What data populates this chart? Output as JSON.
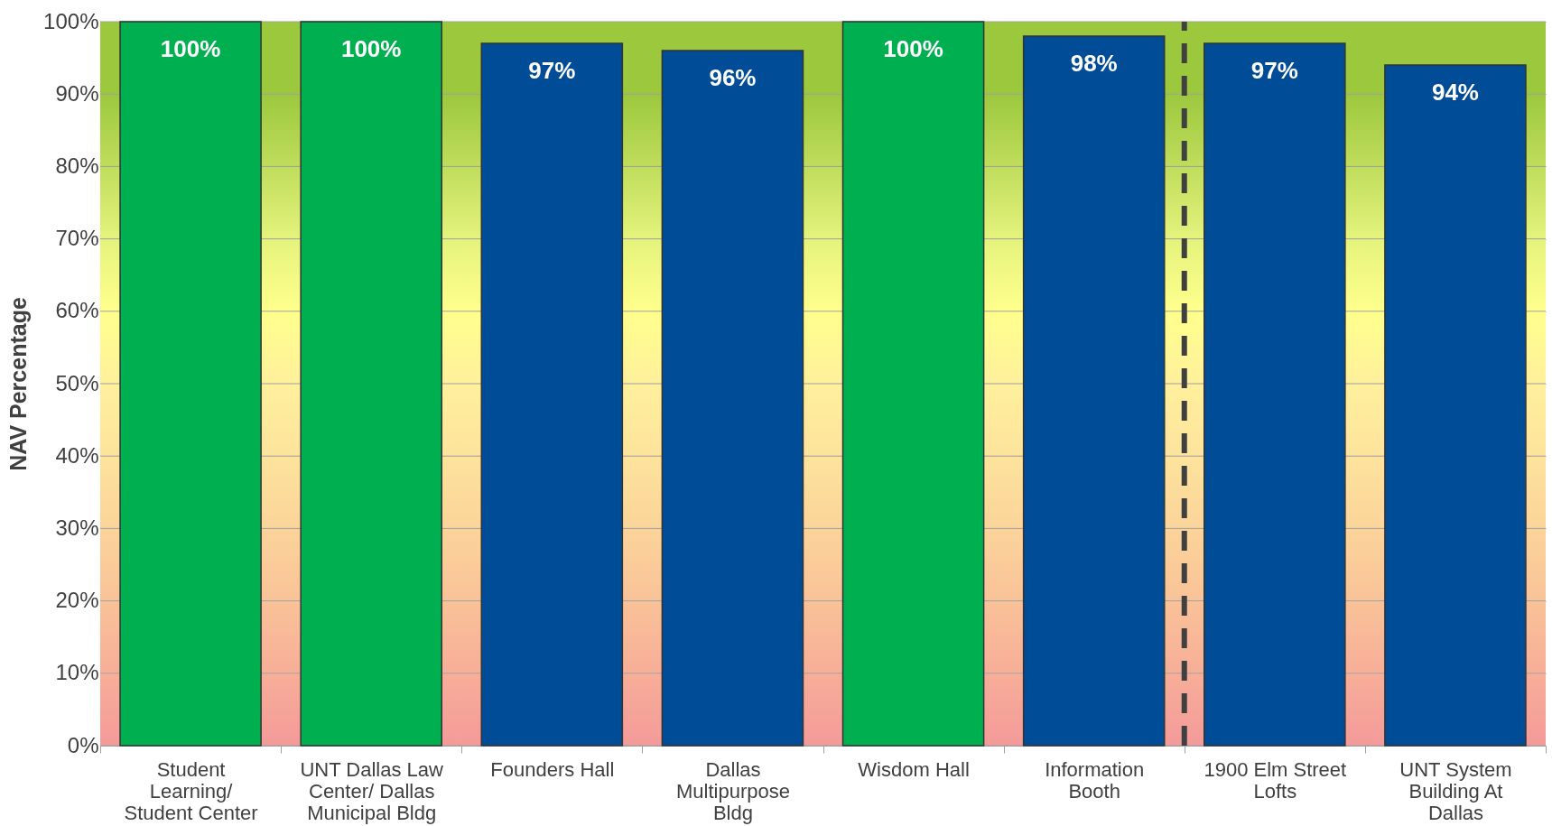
{
  "chart_data": {
    "type": "bar",
    "ylabel": "NAV Percentage",
    "categories": [
      "Student Learning/ Student Center",
      "UNT Dallas Law Center/ Dallas Municipal Bldg",
      "Founders Hall",
      "Dallas Multipurpose Bldg",
      "Wisdom Hall",
      "Information Booth",
      "1900 Elm Street Lofts",
      "UNT System Building At Dallas"
    ],
    "values": [
      100,
      100,
      97,
      96,
      100,
      98,
      97,
      94
    ],
    "colors": [
      "#00b050",
      "#00b050",
      "#004c97",
      "#004c97",
      "#00b050",
      "#004c97",
      "#004c97",
      "#004c97"
    ],
    "value_labels": [
      "100%",
      "100%",
      "97%",
      "96%",
      "100%",
      "98%",
      "97%",
      "94%"
    ],
    "ylim": [
      0,
      100
    ],
    "yticks": [
      {
        "value": 0,
        "label": "0%"
      },
      {
        "value": 10,
        "label": "10%"
      },
      {
        "value": 20,
        "label": "20%"
      },
      {
        "value": 30,
        "label": "30%"
      },
      {
        "value": 40,
        "label": "40%"
      },
      {
        "value": 50,
        "label": "50%"
      },
      {
        "value": 60,
        "label": "60%"
      },
      {
        "value": 70,
        "label": "70%"
      },
      {
        "value": 80,
        "label": "80%"
      },
      {
        "value": 90,
        "label": "90%"
      },
      {
        "value": 100,
        "label": "100%"
      }
    ],
    "grid": "y",
    "bands": [
      {
        "axis": "y",
        "from": 0,
        "to": 10,
        "color": "#f49a9a"
      },
      {
        "axis": "y",
        "from": 10,
        "to": 20,
        "color": "#f7ae98"
      },
      {
        "axis": "y",
        "from": 20,
        "to": 30,
        "color": "#f9c298"
      },
      {
        "axis": "y",
        "from": 30,
        "to": 40,
        "color": "#fbd49a"
      },
      {
        "axis": "y",
        "from": 40,
        "to": 50,
        "color": "#fde39c"
      },
      {
        "axis": "y",
        "from": 50,
        "to": 60,
        "color": "#fff09c"
      },
      {
        "axis": "y",
        "from": 60,
        "to": 70,
        "color": "#ffff8c"
      },
      {
        "axis": "y",
        "from": 70,
        "to": 80,
        "color": "#e4f37c"
      },
      {
        "axis": "y",
        "from": 80,
        "to": 90,
        "color": "#c0dd5c"
      },
      {
        "axis": "y",
        "from": 90,
        "to": 100,
        "color": "#9cc83e"
      }
    ],
    "ref_lines": [
      {
        "axis": "x",
        "value": "1900 Elm Street Lofts",
        "line_style": "dashed",
        "color": "#404040"
      }
    ]
  }
}
